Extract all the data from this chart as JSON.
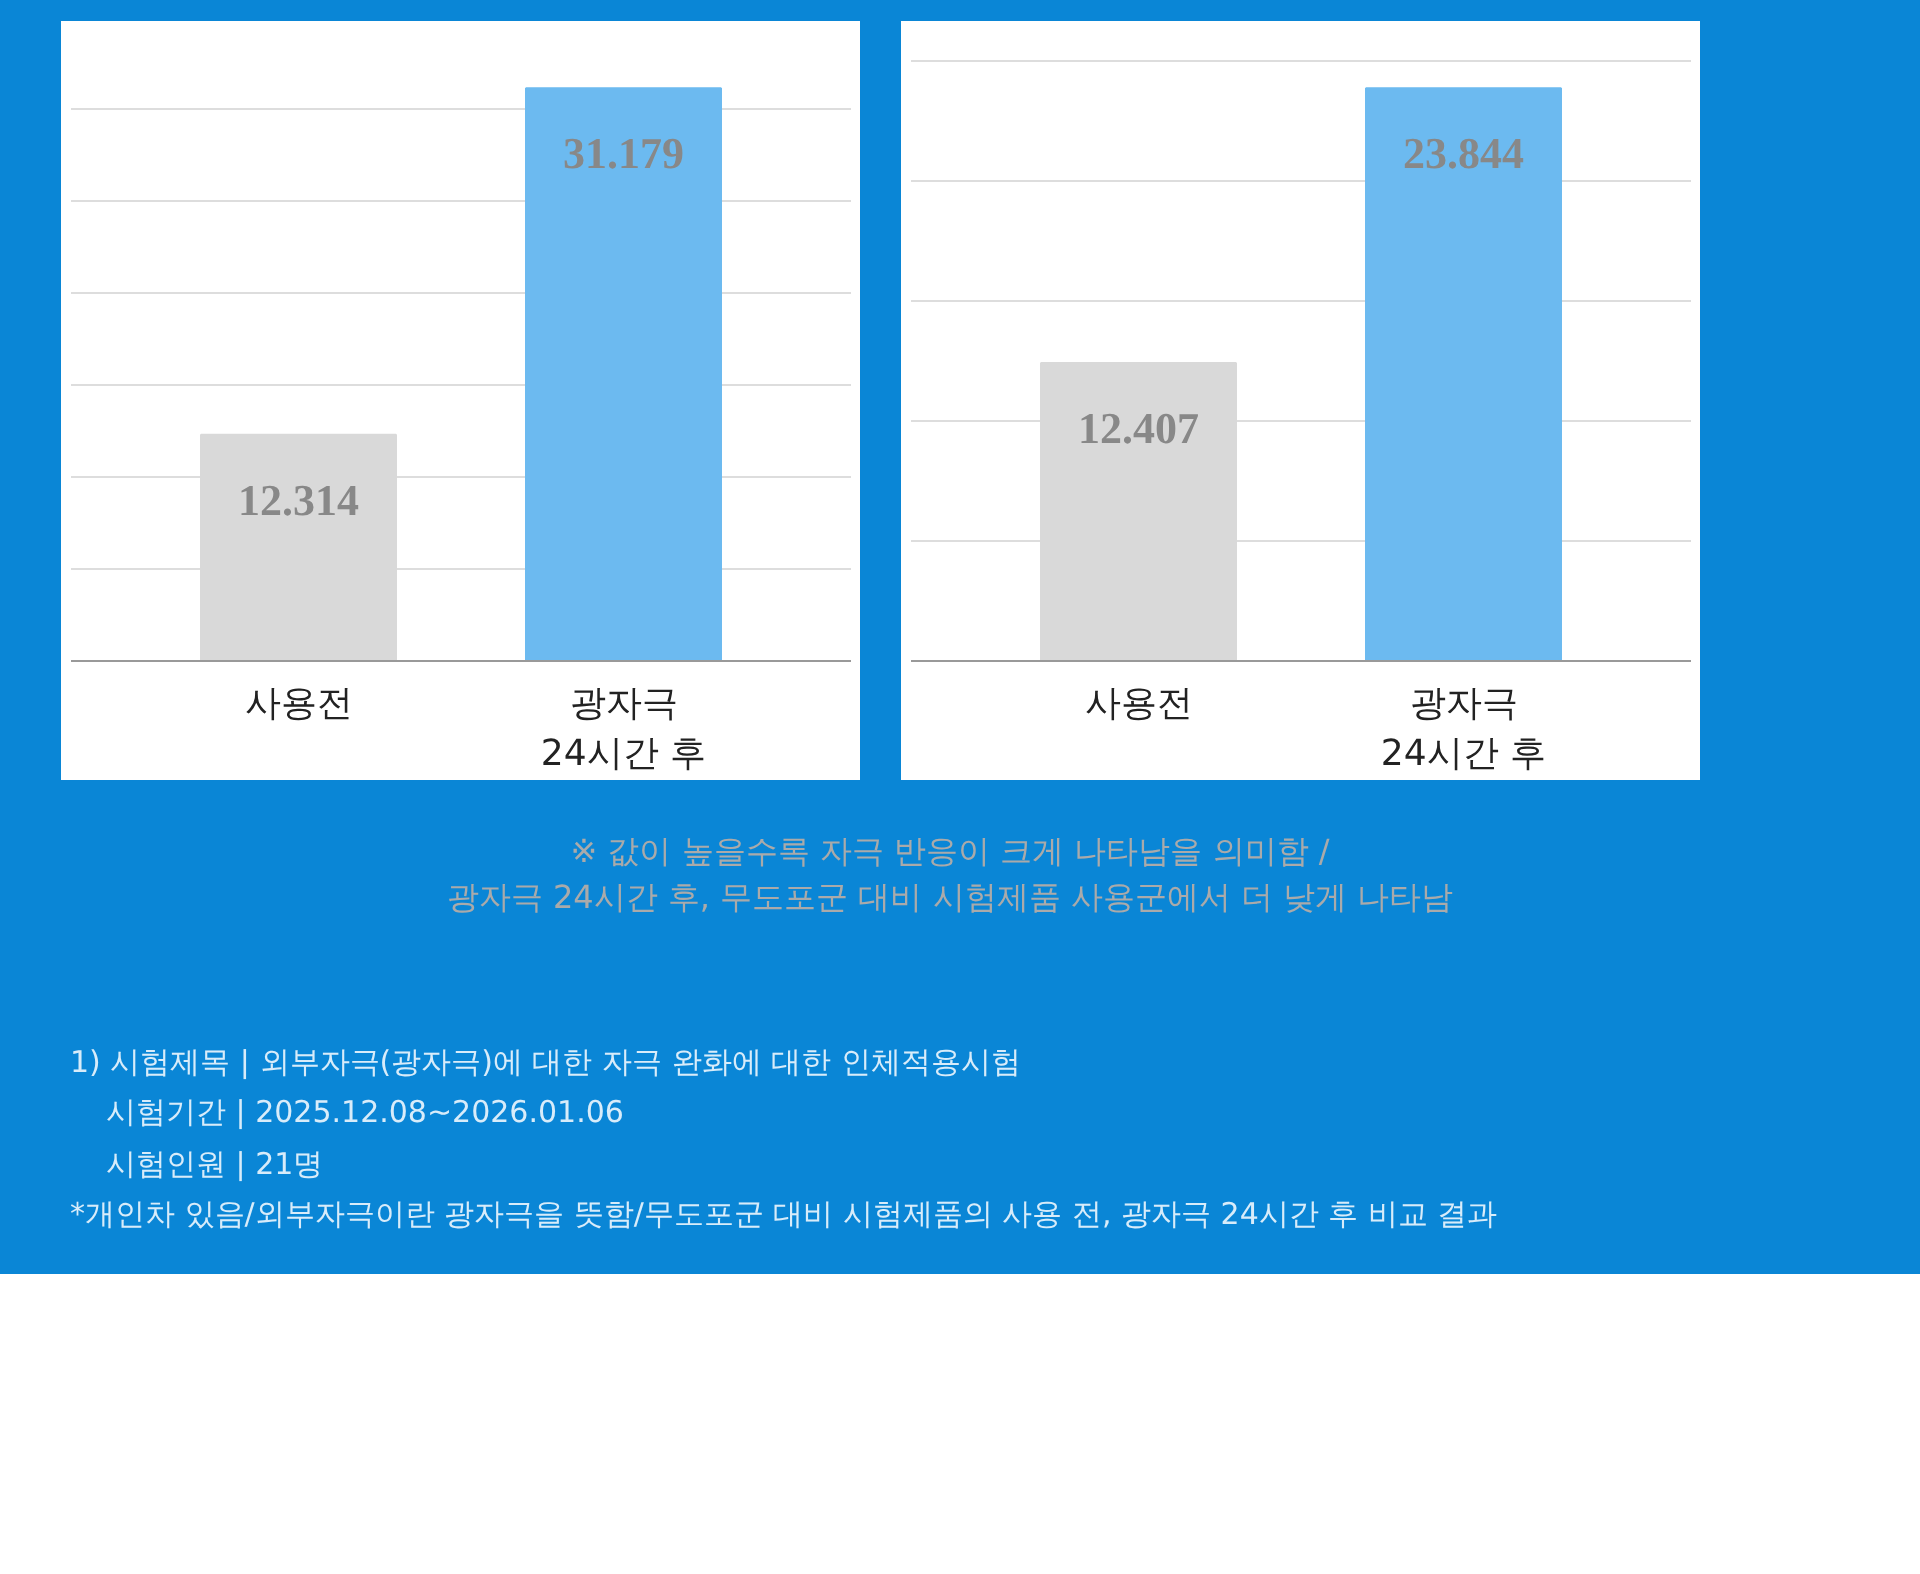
{
  "chart_data": [
    {
      "type": "bar",
      "categories": [
        "사용전",
        "광자극\n24시간 후"
      ],
      "values": [
        12.314,
        31.179
      ],
      "colors": [
        "#d9d9d9",
        "#6cbaf0"
      ],
      "data_labels": true,
      "grid": "y",
      "tick_labels": "x"
    },
    {
      "type": "bar",
      "categories": [
        "사용전",
        "광자극\n24시간 후"
      ],
      "values": [
        12.407,
        23.844
      ],
      "colors": [
        "#d9d9d9",
        "#6cbaf0"
      ],
      "data_labels": true,
      "grid": "y",
      "tick_labels": "x"
    },
    {
      "type": "other",
      "annotations": [
        "※ 값이 높을수록 자극 반응이 크게 나타남을 의미함 /\n광자극 24시간 후, 무도포군 대비 시험제품 사용군에서 더 낮게 나타남",
        "1) 시험제목 | 외부자극(광자극)에 대한 자극 완화에 대한 인체적용시험",
        "시험기간 | 2025.12.08~2026.01.06",
        "시험인원 | 21명",
        "*개인차 있음/외부자극이란 광자극을 뜻함/무도포군 대비 시험제품의 사용 전, 광자극 24시간 후 비교 결과"
      ]
    }
  ]
}
